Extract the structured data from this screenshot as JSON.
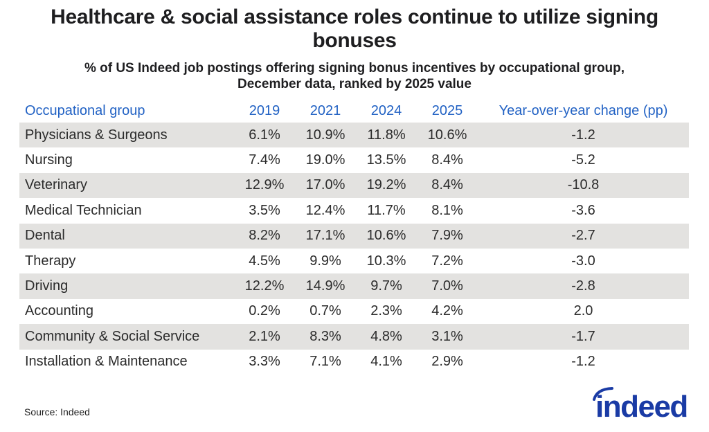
{
  "page": {
    "title": "Healthcare & social assistance roles continue to utilize signing bonuses",
    "subtitle_line1": "% of US Indeed job postings offering signing bonus incentives by occupational group,",
    "subtitle_line2": "December data, ranked by 2025 value",
    "source": "Source: Indeed",
    "logo_text": "indeed"
  },
  "colors": {
    "header_blue": "#2262c4",
    "row_stripe_gray": "#e3e2e0",
    "body_text": "#2b2b2b",
    "title_text": "#1e1e20",
    "logo_blue": "#1a3ba5"
  },
  "chart_data": {
    "type": "table",
    "title": "Healthcare & social assistance roles continue to utilize signing bonuses",
    "subtitle": "% of US Indeed job postings offering signing bonus incentives by occupational group, December data, ranked by 2025 value",
    "columns": [
      "Occupational group",
      "2019",
      "2021",
      "2024",
      "2025",
      "Year-over-year change (pp)"
    ],
    "rows": [
      {
        "group": "Physicians & Surgeons",
        "values": [
          "6.1%",
          "10.9%",
          "11.8%",
          "10.6%"
        ],
        "yoy": "-1.2"
      },
      {
        "group": "Nursing",
        "values": [
          "7.4%",
          "19.0%",
          "13.5%",
          "8.4%"
        ],
        "yoy": "-5.2"
      },
      {
        "group": "Veterinary",
        "values": [
          "12.9%",
          "17.0%",
          "19.2%",
          "8.4%"
        ],
        "yoy": "-10.8"
      },
      {
        "group": "Medical Technician",
        "values": [
          "3.5%",
          "12.4%",
          "11.7%",
          "8.1%"
        ],
        "yoy": "-3.6"
      },
      {
        "group": "Dental",
        "values": [
          "8.2%",
          "17.1%",
          "10.6%",
          "7.9%"
        ],
        "yoy": "-2.7"
      },
      {
        "group": "Therapy",
        "values": [
          "4.5%",
          "9.9%",
          "10.3%",
          "7.2%"
        ],
        "yoy": "-3.0"
      },
      {
        "group": "Driving",
        "values": [
          "12.2%",
          "14.9%",
          "9.7%",
          "7.0%"
        ],
        "yoy": "-2.8"
      },
      {
        "group": "Accounting",
        "values": [
          "0.2%",
          "0.7%",
          "2.3%",
          "4.2%"
        ],
        "yoy": "2.0"
      },
      {
        "group": "Community & Social Service",
        "values": [
          "2.1%",
          "8.3%",
          "4.8%",
          "3.1%"
        ],
        "yoy": "-1.7"
      },
      {
        "group": "Installation & Maintenance",
        "values": [
          "3.3%",
          "7.1%",
          "4.1%",
          "2.9%"
        ],
        "yoy": "-1.2"
      }
    ],
    "layout": {
      "stripe_pattern": "odd data rows shaded gray starting with first row",
      "value_alignment": "center",
      "source_note": "Source: Indeed"
    }
  }
}
